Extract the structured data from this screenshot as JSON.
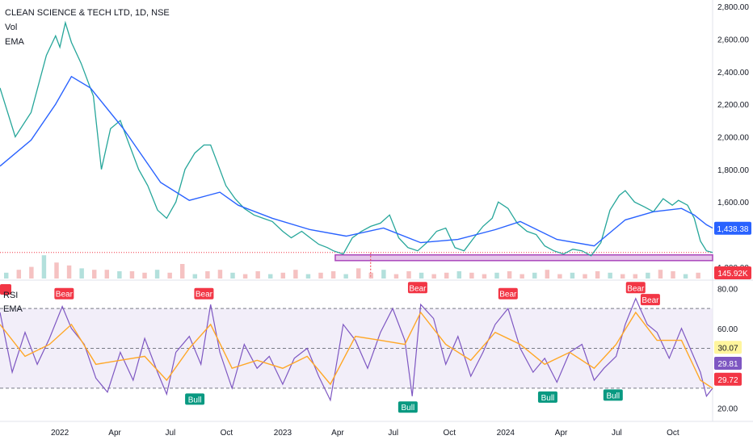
{
  "header": {
    "symbol_line": "CLEAN SCIENCE & TECH LTD, 1D, NSE",
    "vol_label": "Vol",
    "ema_label": "EMA"
  },
  "rsi_header": {
    "rsi_label": "RSI",
    "ema_label": "EMA"
  },
  "colors": {
    "price_line": "#131722",
    "ema": "#2962ff",
    "rsi": "#7e57c2",
    "rsi_ema": "#ffa726",
    "support_fill": "#e1bee7",
    "support_border": "#9c27b0",
    "bear": "#f23645",
    "bull": "#089981",
    "last_price_badge": "#2962ff",
    "volume_badge": "#f23645",
    "band_fill": "#ede7f6"
  },
  "chart_data": [
    {
      "type": "line",
      "title": "CLEAN SCIENCE & TECH LTD, 1D, NSE",
      "x_ticks": [
        "2022",
        "Apr",
        "Jul",
        "Oct",
        "2023",
        "Apr",
        "Jul",
        "Oct",
        "2024",
        "Apr",
        "Jul",
        "Oct"
      ],
      "x_tick_dates": [
        "2022-01-01",
        "2022-04-01",
        "2022-07-01",
        "2022-10-01",
        "2023-01-01",
        "2023-04-01",
        "2023-07-01",
        "2023-10-01",
        "2024-01-01",
        "2024-04-01",
        "2024-07-01",
        "2024-10-01"
      ],
      "x_range": [
        "2021-09-25",
        "2024-12-05"
      ],
      "y_ticks": [
        "2,800.00",
        "2,600.00",
        "2,400.00",
        "2,200.00",
        "2,000.00",
        "1,800.00",
        "1,600.00",
        "1,200.00"
      ],
      "y_tick_values": [
        2800,
        2600,
        2400,
        2200,
        2000,
        1800,
        1600,
        1200
      ],
      "ylim": [
        1130,
        2840
      ],
      "series": [
        {
          "name": "Price",
          "x": [
            "2021-09-25",
            "2021-10-20",
            "2021-11-15",
            "2021-12-10",
            "2021-12-25",
            "2022-01-01",
            "2022-01-10",
            "2022-01-20",
            "2022-02-05",
            "2022-02-25",
            "2022-03-10",
            "2022-03-25",
            "2022-04-10",
            "2022-04-25",
            "2022-05-10",
            "2022-05-25",
            "2022-06-10",
            "2022-06-25",
            "2022-07-10",
            "2022-07-25",
            "2022-08-10",
            "2022-08-25",
            "2022-09-05",
            "2022-09-15",
            "2022-09-30",
            "2022-10-15",
            "2022-10-30",
            "2022-11-15",
            "2022-11-30",
            "2022-12-15",
            "2023-01-01",
            "2023-01-15",
            "2023-02-01",
            "2023-02-15",
            "2023-03-01",
            "2023-03-15",
            "2023-03-25",
            "2023-04-10",
            "2023-04-25",
            "2023-05-10",
            "2023-05-25",
            "2023-06-10",
            "2023-06-25",
            "2023-07-10",
            "2023-07-25",
            "2023-08-10",
            "2023-08-25",
            "2023-09-10",
            "2023-09-25",
            "2023-10-10",
            "2023-10-25",
            "2023-11-10",
            "2023-11-25",
            "2023-12-10",
            "2023-12-20",
            "2024-01-05",
            "2024-01-20",
            "2024-02-05",
            "2024-02-20",
            "2024-03-05",
            "2024-03-20",
            "2024-04-05",
            "2024-04-20",
            "2024-05-05",
            "2024-05-20",
            "2024-06-05",
            "2024-06-20",
            "2024-07-05",
            "2024-07-15",
            "2024-07-30",
            "2024-08-15",
            "2024-08-30",
            "2024-09-15",
            "2024-09-30",
            "2024-10-10",
            "2024-10-25",
            "2024-11-05",
            "2024-11-15",
            "2024-11-25",
            "2024-12-05"
          ],
          "values": [
            2300,
            2000,
            2150,
            2500,
            2620,
            2550,
            2700,
            2580,
            2450,
            2250,
            1800,
            2050,
            2100,
            1950,
            1800,
            1700,
            1550,
            1500,
            1600,
            1800,
            1900,
            1950,
            1950,
            1850,
            1700,
            1620,
            1560,
            1520,
            1500,
            1480,
            1420,
            1380,
            1420,
            1380,
            1340,
            1320,
            1300,
            1280,
            1380,
            1420,
            1450,
            1470,
            1520,
            1380,
            1320,
            1300,
            1350,
            1420,
            1440,
            1320,
            1300,
            1380,
            1450,
            1500,
            1600,
            1560,
            1470,
            1420,
            1400,
            1330,
            1300,
            1280,
            1310,
            1300,
            1270,
            1350,
            1550,
            1640,
            1670,
            1600,
            1570,
            1540,
            1620,
            1580,
            1610,
            1580,
            1500,
            1360,
            1300,
            1290
          ]
        },
        {
          "name": "EMA",
          "x": [
            "2021-09-25",
            "2021-11-15",
            "2021-12-25",
            "2022-01-20",
            "2022-02-20",
            "2022-04-15",
            "2022-06-15",
            "2022-08-01",
            "2022-09-20",
            "2022-10-20",
            "2022-12-15",
            "2023-02-15",
            "2023-04-15",
            "2023-06-15",
            "2023-08-15",
            "2023-10-15",
            "2023-12-15",
            "2024-01-25",
            "2024-03-25",
            "2024-05-25",
            "2024-07-15",
            "2024-08-30",
            "2024-10-15",
            "2024-11-05",
            "2024-11-25",
            "2024-12-05"
          ],
          "values": [
            1820,
            1980,
            2200,
            2370,
            2300,
            2050,
            1720,
            1610,
            1660,
            1580,
            1500,
            1430,
            1390,
            1440,
            1350,
            1370,
            1430,
            1480,
            1370,
            1330,
            1490,
            1540,
            1560,
            1520,
            1460,
            1440
          ]
        },
        {
          "name": "Support",
          "x": [
            "2023-03-28",
            "2024-12-05"
          ],
          "values": [
            1280,
            1280
          ]
        }
      ],
      "support_zone": [
        1240,
        1275
      ],
      "last_price": "1,438.38",
      "last_price_value": 1438.38,
      "marker_lines": {
        "dashed_x": "2023-05-25"
      },
      "volume": {
        "label": "145.92K",
        "values": [
          0.4,
          0.6,
          0.8,
          1.6,
          1.1,
          0.9,
          0.7,
          0.6,
          0.6,
          0.5,
          0.5,
          0.4,
          0.6,
          0.4,
          1.0,
          0.3,
          0.5,
          0.6,
          0.4,
          0.3,
          0.5,
          0.3,
          0.4,
          0.6,
          0.3,
          0.4,
          0.5,
          0.3,
          0.7,
          0.4,
          0.6,
          0.3,
          0.5,
          0.4,
          0.3,
          0.4,
          0.5,
          0.4,
          0.3,
          0.4,
          0.5,
          0.3,
          0.4,
          0.6,
          0.3,
          0.4,
          0.3,
          0.5,
          0.4,
          0.3,
          0.3,
          0.4,
          0.6,
          0.5,
          0.3,
          0.4
        ]
      }
    },
    {
      "type": "line",
      "title": "RSI",
      "y_ticks": [
        "80.00",
        "60.00",
        "20.00"
      ],
      "y_tick_values": [
        80,
        60,
        20
      ],
      "ylim": [
        17,
        83
      ],
      "bands": [
        70,
        50,
        30
      ],
      "series": [
        {
          "name": "RSI",
          "x": [
            "2021-09-25",
            "2021-10-15",
            "2021-11-05",
            "2021-11-25",
            "2021-12-15",
            "2022-01-05",
            "2022-01-20",
            "2022-02-10",
            "2022-03-01",
            "2022-03-20",
            "2022-04-10",
            "2022-05-01",
            "2022-05-20",
            "2022-06-10",
            "2022-06-25",
            "2022-07-10",
            "2022-08-01",
            "2022-08-20",
            "2022-09-05",
            "2022-09-20",
            "2022-10-10",
            "2022-10-30",
            "2022-11-20",
            "2022-12-10",
            "2023-01-01",
            "2023-01-20",
            "2023-02-10",
            "2023-03-01",
            "2023-03-20",
            "2023-04-10",
            "2023-04-30",
            "2023-05-20",
            "2023-06-10",
            "2023-06-30",
            "2023-07-20",
            "2023-08-01",
            "2023-08-15",
            "2023-09-05",
            "2023-09-25",
            "2023-10-15",
            "2023-11-05",
            "2023-11-25",
            "2023-12-15",
            "2024-01-05",
            "2024-01-25",
            "2024-02-15",
            "2024-03-05",
            "2024-03-25",
            "2024-04-15",
            "2024-05-05",
            "2024-05-25",
            "2024-06-10",
            "2024-06-30",
            "2024-07-15",
            "2024-08-01",
            "2024-08-20",
            "2024-09-05",
            "2024-09-25",
            "2024-10-15",
            "2024-11-01",
            "2024-11-15",
            "2024-11-25",
            "2024-12-05"
          ],
          "values": [
            68,
            38,
            58,
            42,
            55,
            71,
            60,
            52,
            35,
            28,
            48,
            34,
            55,
            38,
            27,
            48,
            56,
            42,
            72,
            48,
            30,
            52,
            40,
            46,
            32,
            45,
            50,
            36,
            24,
            62,
            54,
            40,
            58,
            70,
            54,
            26,
            72,
            65,
            42,
            56,
            36,
            48,
            62,
            70,
            50,
            38,
            45,
            33,
            48,
            52,
            34,
            40,
            46,
            62,
            75,
            62,
            58,
            45,
            60,
            48,
            38,
            26,
            30
          ]
        },
        {
          "name": "EMA",
          "x": [
            "2021-09-25",
            "2021-11-05",
            "2021-12-15",
            "2022-01-20",
            "2022-03-01",
            "2022-04-10",
            "2022-05-20",
            "2022-06-25",
            "2022-08-01",
            "2022-09-05",
            "2022-10-10",
            "2022-11-20",
            "2023-01-01",
            "2023-02-10",
            "2023-03-20",
            "2023-04-30",
            "2023-06-10",
            "2023-07-20",
            "2023-08-15",
            "2023-09-25",
            "2023-11-05",
            "2023-12-15",
            "2024-01-25",
            "2024-03-05",
            "2024-04-15",
            "2024-05-25",
            "2024-06-30",
            "2024-08-01",
            "2024-09-05",
            "2024-10-15",
            "2024-11-15",
            "2024-12-05"
          ],
          "values": [
            62,
            46,
            52,
            62,
            42,
            44,
            46,
            34,
            50,
            62,
            40,
            44,
            40,
            46,
            32,
            56,
            54,
            52,
            68,
            52,
            44,
            58,
            52,
            42,
            48,
            40,
            52,
            68,
            54,
            54,
            34,
            30
          ]
        }
      ],
      "value_labels": [
        "30.07",
        "29.81",
        "29.72"
      ],
      "annotations": [
        {
          "label": "Bear",
          "x": "2022-01-08",
          "y": 73
        },
        {
          "label": "Bear",
          "x": "2022-08-25",
          "y": 73
        },
        {
          "label": "Bull",
          "x": "2022-08-10",
          "y": 29
        },
        {
          "label": "Bear",
          "x": "2023-08-10",
          "y": 76
        },
        {
          "label": "Bull",
          "x": "2023-07-25",
          "y": 25
        },
        {
          "label": "Bear",
          "x": "2024-01-05",
          "y": 73
        },
        {
          "label": "Bull",
          "x": "2024-03-10",
          "y": 30
        },
        {
          "label": "Bear",
          "x": "2024-08-01",
          "y": 76
        },
        {
          "label": "Bear",
          "x": "2024-08-25",
          "y": 70
        },
        {
          "label": "Bull",
          "x": "2024-06-25",
          "y": 31
        }
      ],
      "edge_label": "Bear"
    }
  ]
}
